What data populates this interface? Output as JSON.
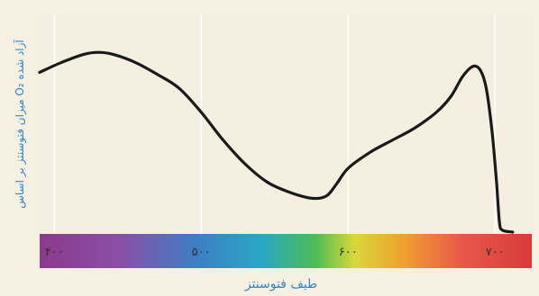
{
  "chart_data": {
    "type": "line",
    "xlabel": "طیف فتوسنتز",
    "ylabel": "میزان فتوسنتز بر اساس O₂ آزاد شده",
    "xlim": [
      390,
      725
    ],
    "ylim": [
      0,
      1
    ],
    "xticks": [
      {
        "value": 400,
        "label": "۴۰۰"
      },
      {
        "value": 500,
        "label": "۵۰۰"
      },
      {
        "value": 600,
        "label": "۶۰۰"
      },
      {
        "value": 700,
        "label": "۷۰۰"
      }
    ],
    "grid": true,
    "series": [
      {
        "points": [
          [
            390,
            0.8
          ],
          [
            405,
            0.85
          ],
          [
            420,
            0.89
          ],
          [
            430,
            0.9
          ],
          [
            440,
            0.89
          ],
          [
            455,
            0.85
          ],
          [
            470,
            0.79
          ],
          [
            485,
            0.72
          ],
          [
            500,
            0.6
          ],
          [
            515,
            0.46
          ],
          [
            530,
            0.34
          ],
          [
            545,
            0.25
          ],
          [
            560,
            0.2
          ],
          [
            575,
            0.17
          ],
          [
            585,
            0.18
          ],
          [
            592,
            0.24
          ],
          [
            600,
            0.32
          ],
          [
            615,
            0.4
          ],
          [
            630,
            0.46
          ],
          [
            645,
            0.52
          ],
          [
            660,
            0.6
          ],
          [
            670,
            0.68
          ],
          [
            678,
            0.78
          ],
          [
            685,
            0.83
          ],
          [
            690,
            0.81
          ],
          [
            694,
            0.72
          ],
          [
            698,
            0.5
          ],
          [
            701,
            0.25
          ],
          [
            703,
            0.05
          ],
          [
            705,
            0.01
          ],
          [
            712,
            0.0
          ]
        ]
      }
    ]
  },
  "colors": {
    "background": "#f5f0e1",
    "plot_background": "#f4efe0",
    "line": "#1a1a1a",
    "label": "#2e86c8"
  }
}
